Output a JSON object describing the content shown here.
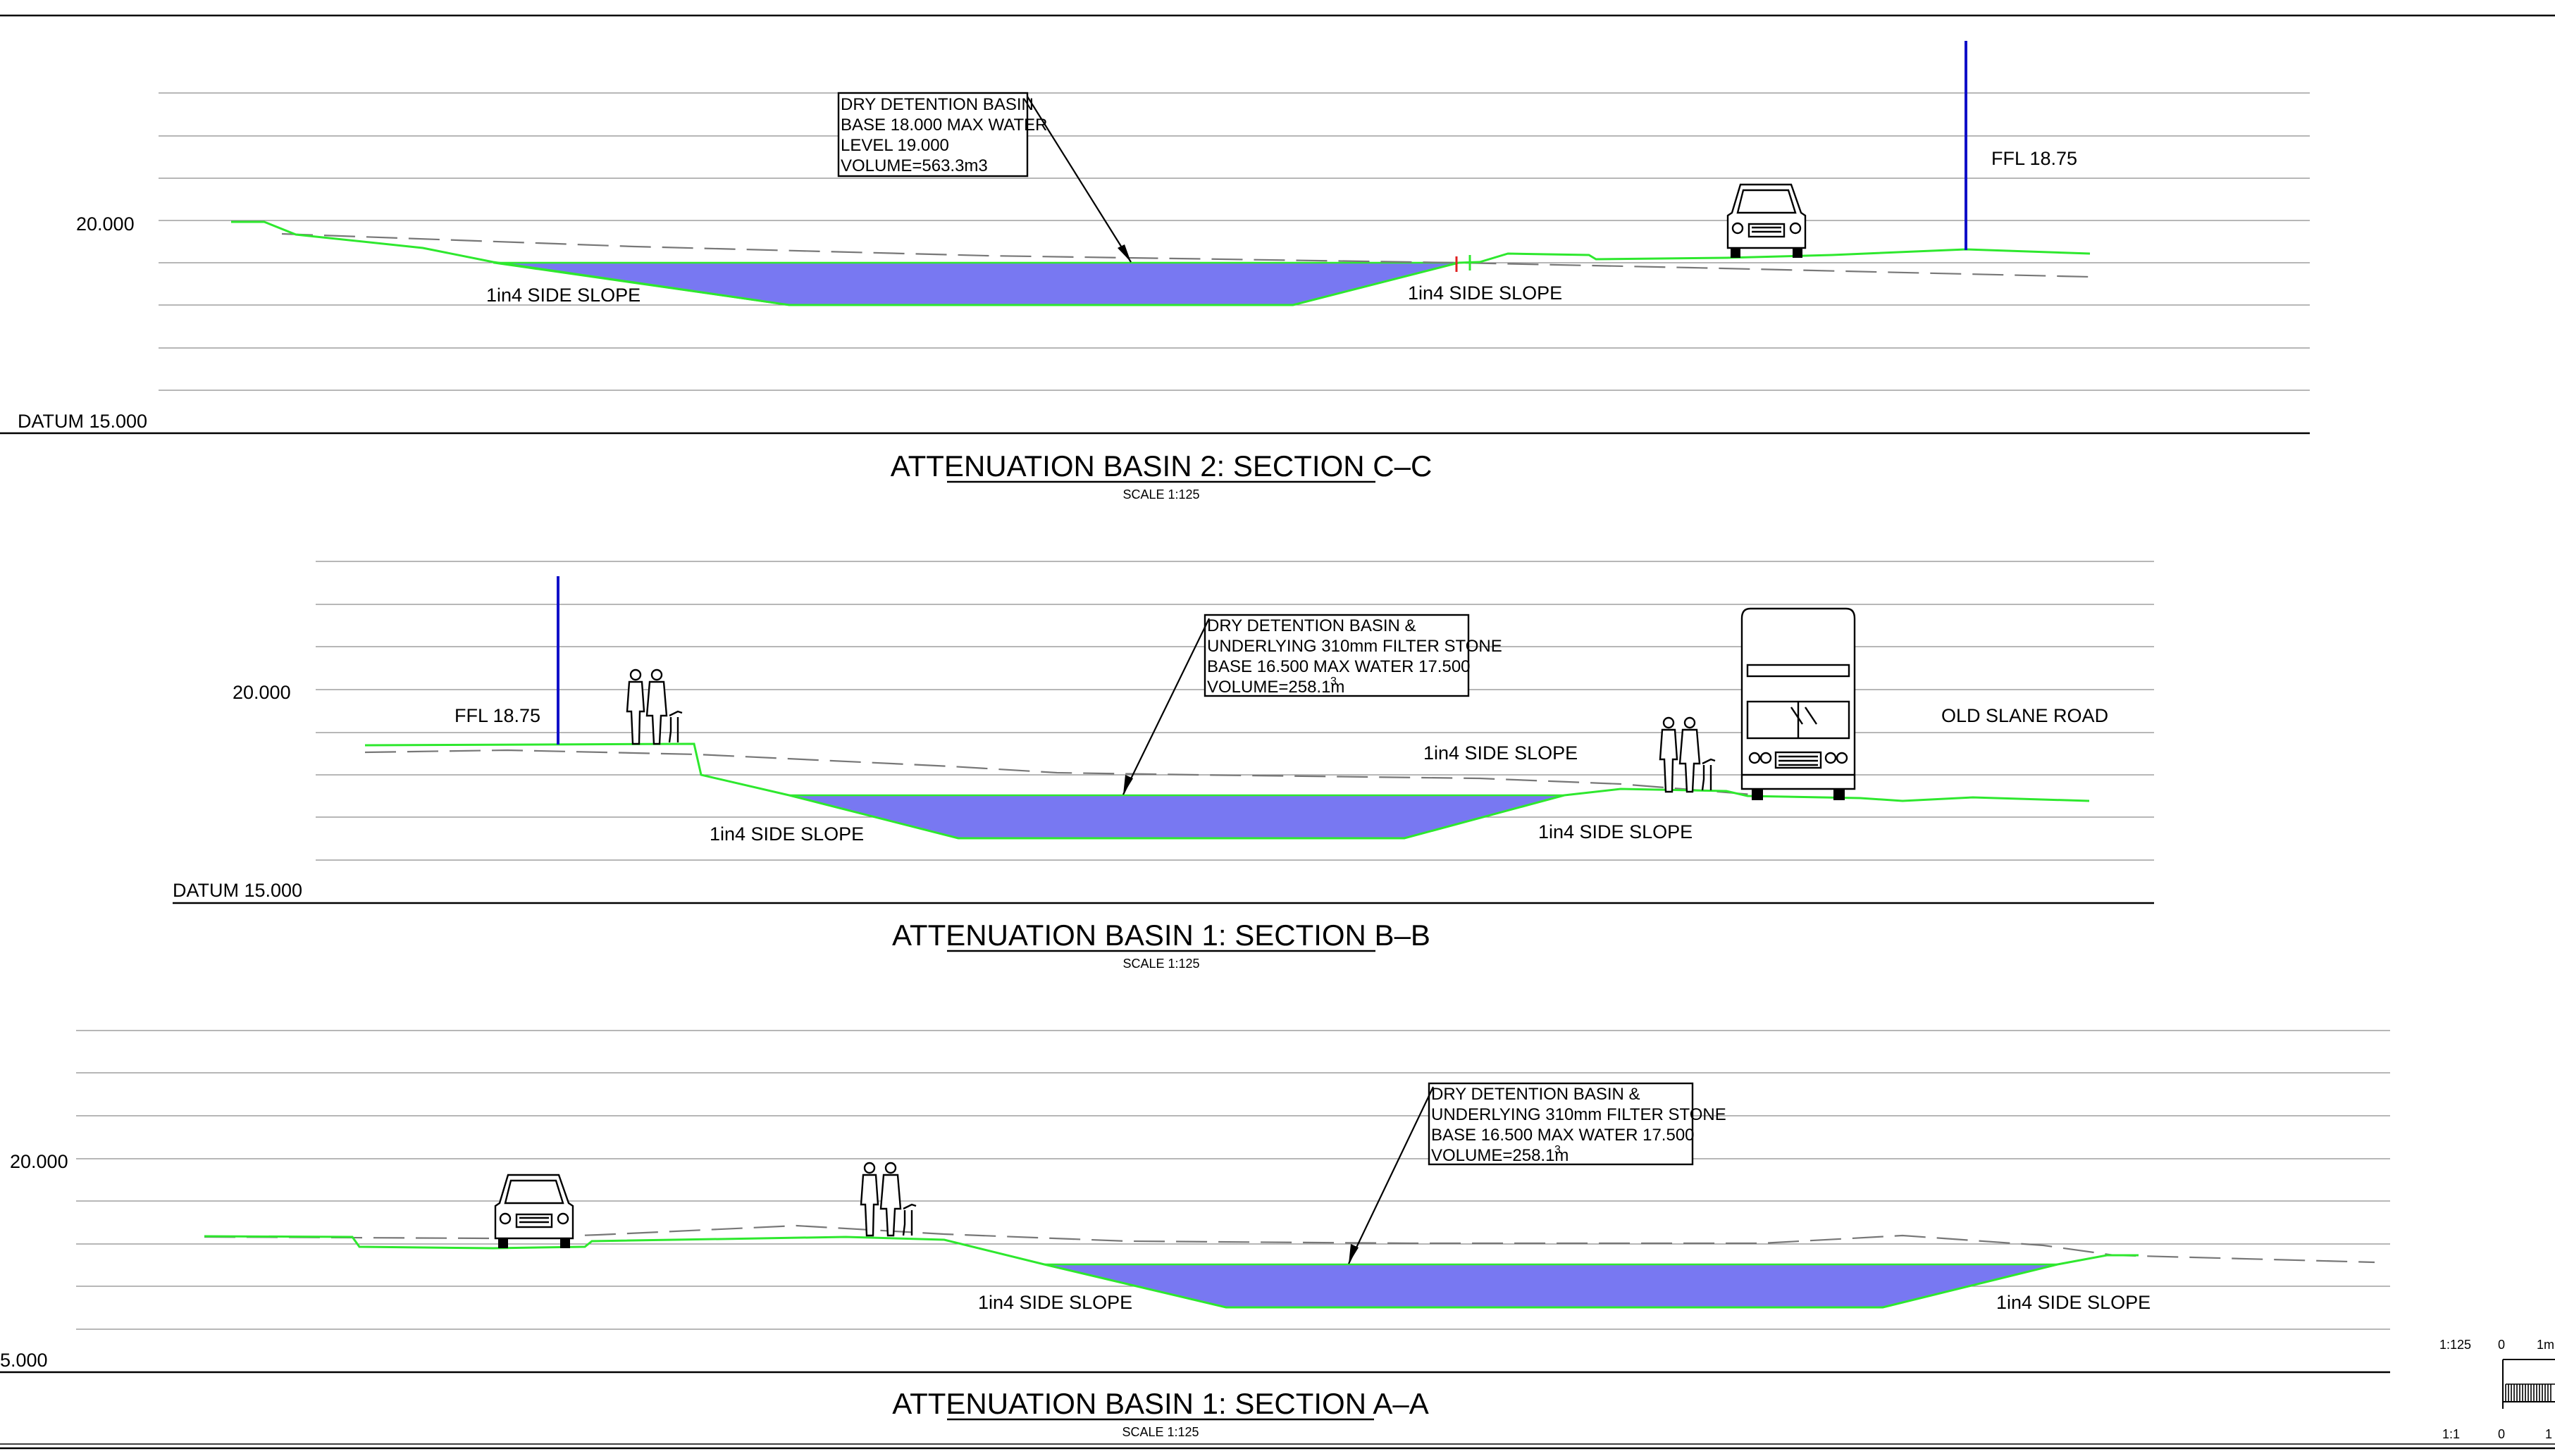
{
  "sections": {
    "c": {
      "title": "ATTENUATION BASIN 2: SECTION C–C",
      "scale": "SCALE 1:125",
      "level": "20.000",
      "datum": "DATUM 15.000",
      "slope_left": "1in4 SIDE SLOPE",
      "slope_right": "1in4 SIDE SLOPE",
      "ffl": "FFL 18.75",
      "callout": [
        "DRY DETENTION BASIN",
        "BASE 18.000 MAX WATER",
        "LEVEL 19.000",
        "VOLUME=563.3m3"
      ]
    },
    "b": {
      "title": "ATTENUATION BASIN 1: SECTION B–B",
      "scale": "SCALE 1:125",
      "level": "20.000",
      "datum": "DATUM 15.000",
      "ffl": "FFL 18.75",
      "slope_top": "1in4 SIDE SLOPE",
      "slope_left": "1in4 SIDE SLOPE",
      "slope_right": "1in4 SIDE SLOPE",
      "road": "OLD SLANE ROAD",
      "callout": [
        "DRY DETENTION BASIN &",
        "UNDERLYING 310mm FILTER STONE",
        "BASE 16.500 MAX WATER 17.500",
        "VOLUME=258.1m",
        "3"
      ]
    },
    "a": {
      "title": "ATTENUATION BASIN 1: SECTION A–A",
      "scale": "SCALE 1:125",
      "level": "20.000",
      "datum": "5.000",
      "slope_left": "1in4 SIDE SLOPE",
      "slope_right": "1in4 SIDE SLOPE",
      "callout": [
        "DRY DETENTION BASIN &",
        "UNDERLYING 310mm FILTER STONE",
        "BASE 16.500 MAX WATER 17.500",
        "VOLUME=258.1m",
        "3"
      ]
    }
  },
  "scale_bar": {
    "ratio_top": "1:125",
    "zero_top": "0",
    "one_top": "1m",
    "ratio_bottom": "1:1",
    "zero_bottom": "0",
    "one_bottom": "1"
  },
  "colors": {
    "water": "#7878f2",
    "ground": "#2ee82e",
    "ffl_line": "#1010c8",
    "existing_ground": "#777777"
  }
}
